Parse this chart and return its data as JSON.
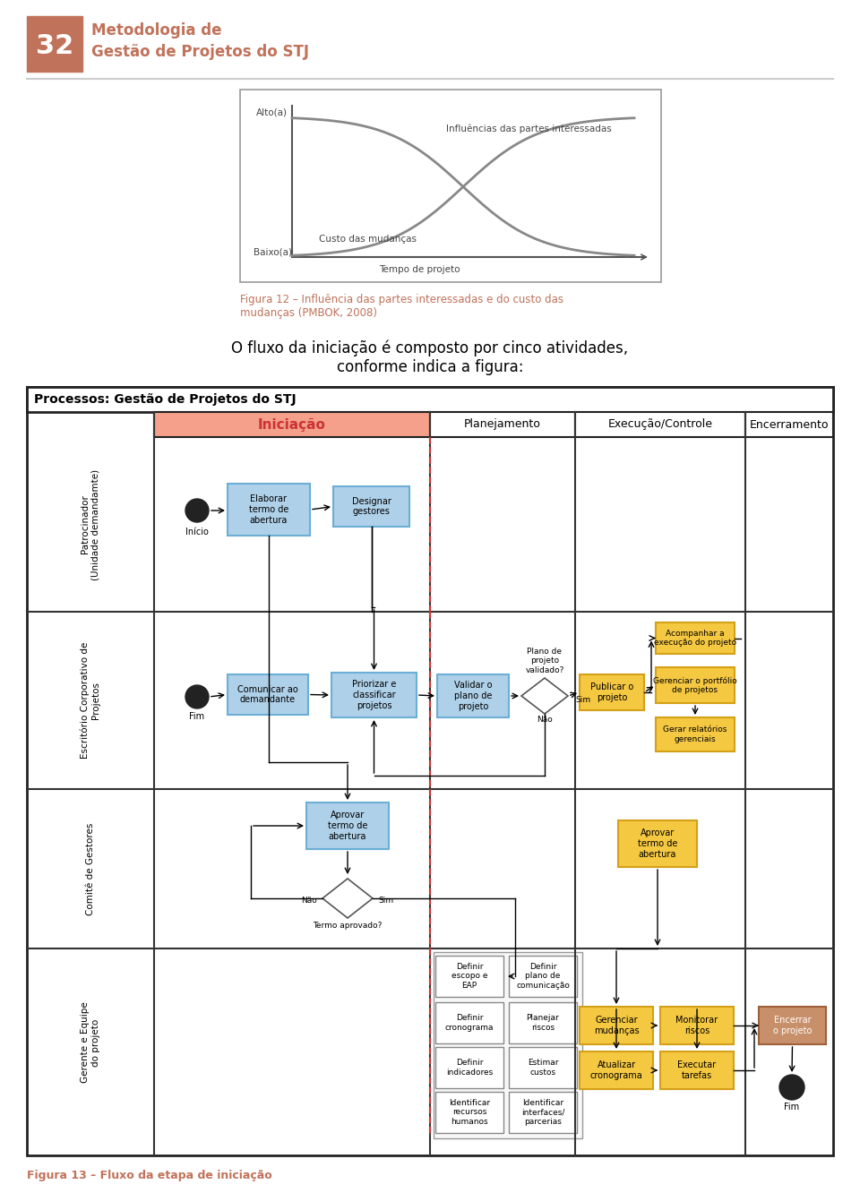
{
  "page_bg": "#ffffff",
  "header_color": "#c0725a",
  "header_number": "32",
  "header_title_line1": "Metodologia de",
  "header_title_line2": "Gestão de Projetos do STJ",
  "fig12_caption": "Figura 12 – Influência das partes interessadas e do custo das\nmudanças (PMBOK, 2008)",
  "fig12_caption_color": "#c0725a",
  "body_text": "O fluxo da iniciação é composto por cinco atividades,\nconforme indica a figura:",
  "process_title": "Processos: Gestão de Projetos do STJ",
  "phase_iniciacacao": "Iniciação",
  "phase_planejamento": "Planejamento",
  "phase_execucao": "Execução/Controle",
  "phase_encerramento": "Encerramento",
  "iniciacao_bg": "#f4c8b8",
  "iniciacao_header_bg": "#f4a08a",
  "row_labels": [
    "Patrocinador\n(Unidade demandamte)",
    "Escritório Corporativo de\nProjetos",
    "Comitê de Gestores",
    "Gerente e Equipe\ndo projeto"
  ],
  "blue_box_color": "#aed0e8",
  "blue_box_border": "#6baed6",
  "yellow_box_color": "#f5c842",
  "yellow_box_border": "#d4a017",
  "brown_box_color": "#c8906a",
  "brown_box_border": "#a0603a",
  "fig13_caption": "Figura 13 – Fluxo da etapa de iniciação",
  "fig13_caption_color": "#c0725a"
}
